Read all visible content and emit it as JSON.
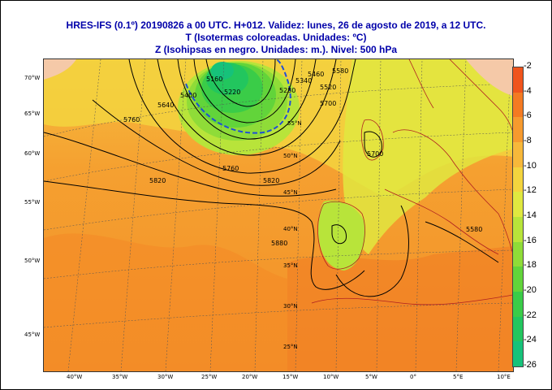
{
  "title": {
    "line1": "HRES-IFS (0.1º) 20190826 a 00 UTC.  H+012. Validez: lunes, 26 de agosto de 2019,  a  12 UTC.",
    "line2": "T (Isotermas coloreadas. Unidades: ºC)",
    "line3": "Z (Isohipsas en negro. Unidades: m.).   Nivel: 500 hPa"
  },
  "colorbar": {
    "labels": [
      "-2",
      "-4",
      "-6",
      "-8",
      "-10",
      "-12",
      "-14",
      "-16",
      "-18",
      "-20",
      "-22",
      "-24",
      "-26"
    ],
    "colors": [
      "#f0541c",
      "#f47a22",
      "#f69a2e",
      "#f7b83a",
      "#f3d43e",
      "#e0e840",
      "#b8e43a",
      "#8fdc38",
      "#62d43a",
      "#3acc48",
      "#22c65e",
      "#16c27a",
      "#12c096"
    ]
  },
  "axes": {
    "lon_labels": [
      "40°W",
      "35°W",
      "30°W",
      "25°W",
      "20°W",
      "15°W",
      "10°W",
      "5°W",
      "0°",
      "5°E",
      "10°E"
    ],
    "lat_left_labels": [
      "70°W",
      "65°W",
      "60°W",
      "55°W",
      "50°W",
      "45°W"
    ],
    "lat_inner_labels": [
      "55°N",
      "50°N",
      "45°N",
      "40°N",
      "35°N",
      "30°N",
      "25°N"
    ]
  },
  "contour_labels": [
    "5160",
    "5220",
    "5280",
    "5340",
    "5400",
    "5460",
    "5520",
    "5580",
    "5640",
    "5700",
    "5760",
    "5820",
    "5880",
    "5580",
    "5760",
    "5820",
    "5700"
  ]
}
